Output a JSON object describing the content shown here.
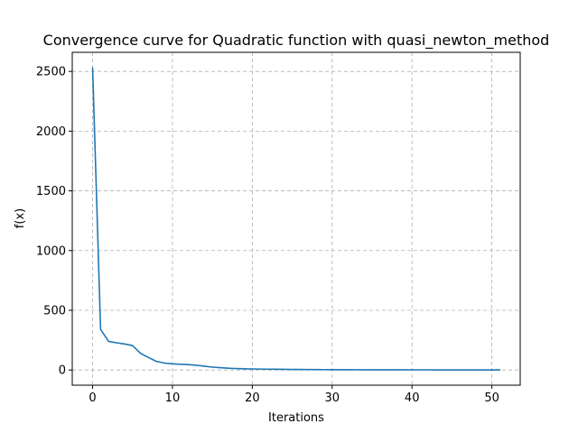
{
  "chart_data": {
    "type": "line",
    "title": "Convergence curve for Quadratic function with quasi_newton_method",
    "xlabel": "Iterations",
    "ylabel": "f(x)",
    "xlim": [
      -2.55,
      53.55
    ],
    "ylim": [
      -127,
      2660
    ],
    "xticks": [
      0,
      10,
      20,
      30,
      40,
      50
    ],
    "yticks": [
      0,
      500,
      1000,
      1500,
      2000,
      2500
    ],
    "grid": true,
    "line_color": "#1f77b4",
    "series": [
      {
        "x": [
          0,
          1,
          2,
          3,
          4,
          5,
          6,
          7,
          8,
          9,
          10,
          11,
          12,
          13,
          14,
          15,
          16,
          17,
          18,
          19,
          20,
          21,
          22,
          23,
          24,
          25,
          26,
          27,
          28,
          29,
          30,
          31,
          32,
          33,
          34,
          35,
          36,
          37,
          38,
          39,
          40,
          41,
          42,
          43,
          44,
          45,
          46,
          47,
          48,
          49,
          50,
          51
        ],
        "values": [
          2530,
          340,
          240,
          228,
          218,
          205,
          140,
          105,
          72,
          58,
          52,
          48,
          45,
          40,
          32,
          24,
          20,
          15,
          12,
          10,
          9,
          8,
          7,
          6.5,
          6,
          5,
          4.5,
          4,
          3.5,
          3.2,
          3,
          2.8,
          2.6,
          2.4,
          2.2,
          2,
          1.9,
          1.8,
          1.7,
          1.6,
          1.5,
          1.4,
          1.3,
          1.2,
          1.1,
          1,
          1,
          1,
          1,
          1,
          1,
          1
        ]
      }
    ]
  }
}
